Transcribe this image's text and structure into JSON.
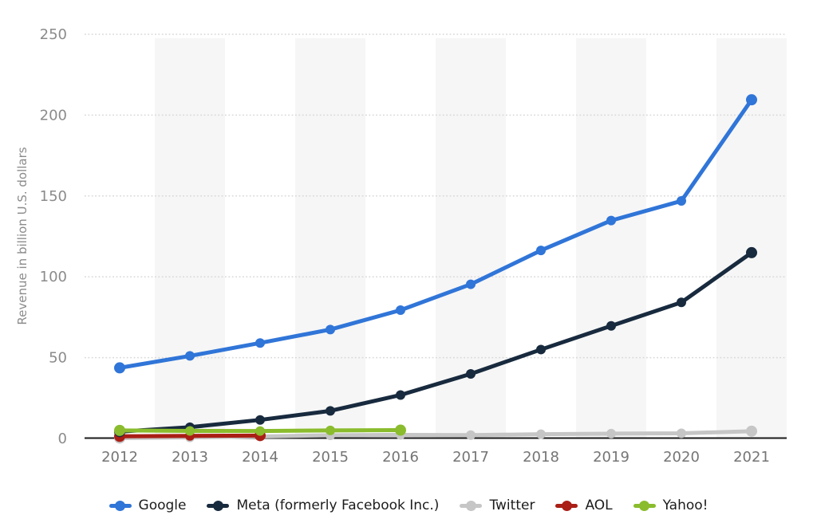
{
  "chart_data": {
    "type": "line",
    "title": "",
    "xlabel": "",
    "ylabel": "Revenue in billion U.S. dollars",
    "x": [
      "2012",
      "2013",
      "2014",
      "2015",
      "2016",
      "2017",
      "2018",
      "2019",
      "2020",
      "2021"
    ],
    "yticks": [
      0,
      50,
      100,
      150,
      200,
      250
    ],
    "ylim": [
      0,
      250
    ],
    "grid": "horizontal-dotted",
    "plot_bands": "alternating vertical year bands (gray on 2013, 2015, 2017, 2019, 2021)",
    "legend_position": "bottom",
    "series": [
      {
        "name": "Google",
        "color": "#3075d8",
        "values": [
          43.69,
          51.07,
          59.06,
          67.39,
          79.38,
          95.38,
          116.32,
          134.81,
          146.92,
          209.49
        ]
      },
      {
        "name": "Meta (formerly Facebook Inc.)",
        "color": "#182a3e",
        "values": [
          4.28,
          6.99,
          11.49,
          17.08,
          26.89,
          39.94,
          55.01,
          69.66,
          84.17,
          114.93
        ]
      },
      {
        "name": "Twitter",
        "color": "#c6c6c6",
        "values": [
          0.27,
          0.66,
          1.26,
          1.99,
          2.25,
          2.11,
          2.62,
          2.99,
          3.21,
          4.51
        ]
      },
      {
        "name": "AOL",
        "color": "#aa1e15",
        "values": [
          1.36,
          1.61,
          1.81,
          null,
          null,
          null,
          null,
          null,
          null,
          null
        ]
      },
      {
        "name": "Yahoo!",
        "color": "#8abc2d",
        "values": [
          4.99,
          4.68,
          4.62,
          4.97,
          5.17,
          null,
          null,
          null,
          null,
          null
        ]
      }
    ]
  },
  "colors": {
    "background": "#ffffff",
    "plot_band": "#f6f6f6",
    "gridline": "#d8d8d8",
    "axis_line": "#1a1a1a",
    "y_tick_label": "#8b8b8b",
    "x_tick_label": "#757575",
    "y_axis_title": "#8b8b8b",
    "legend_text": "#1c1c1c"
  }
}
